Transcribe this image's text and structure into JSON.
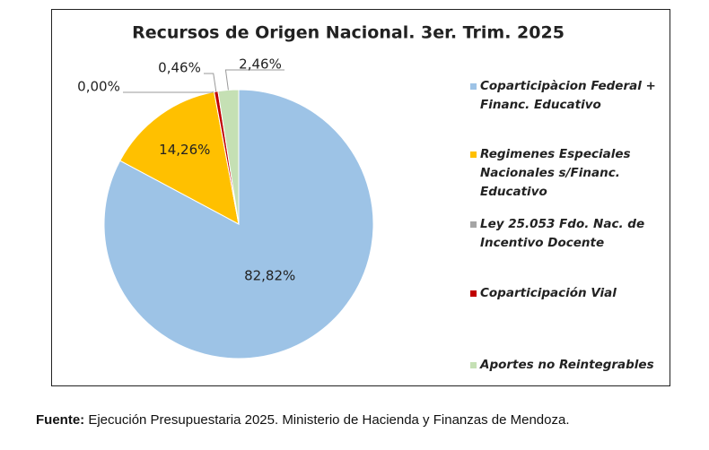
{
  "chart_data": {
    "type": "pie",
    "title": "Recursos de Origen Nacional. 3er. Trim. 2025",
    "categories": [
      "Coparticipàcion Federal + Financ. Educativo",
      "Regimenes Especiales Nacionales s/Financ. Educativo",
      "Ley 25.053 Fdo. Nac. de Incentivo Docente",
      "Coparticipación Vial",
      "Aportes no Reintegrables"
    ],
    "values": [
      82.82,
      14.26,
      0.0,
      0.46,
      2.46
    ],
    "value_labels": [
      "82,82%",
      "14,26%",
      "0,00%",
      "0,46%",
      "2,46%"
    ],
    "colors": [
      "#9dc3e6",
      "#ffc000",
      "#a5a5a5",
      "#c00000",
      "#c5e0b4"
    ],
    "legend": "right"
  },
  "footer": {
    "label": "Fuente:",
    "text": "Ejecución Presupuestaria 2025. Ministerio de Hacienda y Finanzas de Mendoza."
  }
}
